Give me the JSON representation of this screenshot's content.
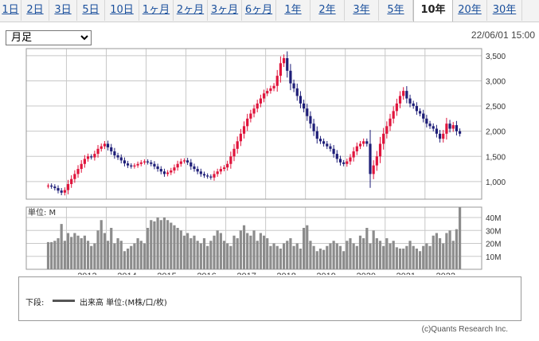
{
  "tabs": [
    {
      "label": "1日",
      "active": false
    },
    {
      "label": "2日",
      "active": false
    },
    {
      "label": "3日",
      "active": false
    },
    {
      "label": "5日",
      "active": false
    },
    {
      "label": "10日",
      "active": false
    },
    {
      "label": "1ヶ月",
      "active": false
    },
    {
      "label": "2ヶ月",
      "active": false
    },
    {
      "label": "3ヶ月",
      "active": false
    },
    {
      "label": "6ヶ月",
      "active": false
    },
    {
      "label": "1年",
      "active": false
    },
    {
      "label": "2年",
      "active": false
    },
    {
      "label": "3年",
      "active": false
    },
    {
      "label": "5年",
      "active": false
    },
    {
      "label": "10年",
      "active": true
    },
    {
      "label": "20年",
      "active": false
    },
    {
      "label": "30年",
      "active": false
    }
  ],
  "period_select": {
    "value": "月足"
  },
  "datetime": "22/06/01 15:00",
  "legend": {
    "prefix": "下段:",
    "text": "出来高 単位:(M株/口/枚)"
  },
  "copyright": "(c)Quants Research Inc.",
  "colors": {
    "up": "#e0143c",
    "down": "#1e1e78",
    "volume": "#8c8c8c",
    "grid": "#c8c8c8",
    "frame": "#9a9a9a"
  },
  "chart_data": {
    "type": "candlestick",
    "x_labels": [
      "2013",
      "2014",
      "2015",
      "2016",
      "2017",
      "2018",
      "2019",
      "2020",
      "2021",
      "2022"
    ],
    "price_axis": {
      "ticks": [
        1000,
        1500,
        2000,
        2500,
        3000,
        3500
      ],
      "tick_labels": [
        "1,000",
        "1,500",
        "2,000",
        "2,500",
        "3,000",
        "3,500"
      ],
      "ylim": [
        650,
        3640
      ]
    },
    "volume_axis": {
      "title": "単位: M",
      "ticks": [
        10,
        20,
        30,
        40
      ],
      "tick_labels": [
        "10M",
        "20M",
        "30M",
        "40M"
      ],
      "ylim": [
        0,
        48
      ]
    },
    "start_month": "2012-07",
    "closes": [
      920,
      900,
      870,
      820,
      780,
      830,
      950,
      1050,
      1150,
      1250,
      1350,
      1450,
      1500,
      1480,
      1550,
      1650,
      1700,
      1750,
      1680,
      1600,
      1520,
      1480,
      1420,
      1360,
      1320,
      1300,
      1320,
      1350,
      1380,
      1400,
      1380,
      1350,
      1300,
      1250,
      1200,
      1150,
      1180,
      1220,
      1280,
      1350,
      1400,
      1420,
      1380,
      1300,
      1250,
      1200,
      1150,
      1120,
      1100,
      1080,
      1150,
      1200,
      1250,
      1280,
      1350,
      1500,
      1650,
      1800,
      1950,
      2100,
      2250,
      2350,
      2450,
      2550,
      2650,
      2750,
      2800,
      2850,
      2900,
      3100,
      3350,
      3450,
      3200,
      2950,
      2850,
      2700,
      2550,
      2450,
      2300,
      2150,
      2000,
      1850,
      1800,
      1750,
      1700,
      1650,
      1550,
      1450,
      1380,
      1350,
      1400,
      1480,
      1600,
      1700,
      1750,
      1800,
      1750,
      1150,
      1320,
      1500,
      1750,
      1950,
      2100,
      2250,
      2400,
      2550,
      2700,
      2800,
      2650,
      2550,
      2500,
      2400,
      2350,
      2250,
      2150,
      2100,
      2050,
      1950,
      1850,
      1950,
      2150,
      2050,
      2120,
      2000,
      1950
    ],
    "volumes": [
      21,
      21,
      22,
      24,
      35,
      22,
      28,
      25,
      28,
      26,
      24,
      26,
      22,
      18,
      20,
      30,
      38,
      28,
      22,
      32,
      20,
      24,
      22,
      14,
      16,
      18,
      20,
      24,
      22,
      20,
      32,
      38,
      37,
      40,
      38,
      40,
      38,
      36,
      34,
      32,
      30,
      26,
      28,
      24,
      26,
      22,
      20,
      24,
      18,
      22,
      26,
      30,
      28,
      22,
      20,
      18,
      26,
      24,
      30,
      34,
      28,
      26,
      30,
      22,
      28,
      26,
      24,
      18,
      20,
      18,
      16,
      20,
      22,
      24,
      18,
      20,
      16,
      32,
      34,
      22,
      18,
      14,
      16,
      15,
      18,
      20,
      22,
      20,
      18,
      14,
      22,
      24,
      20,
      18,
      26,
      24,
      32,
      20,
      30,
      24,
      22,
      18,
      24,
      20,
      22,
      17,
      16,
      16,
      18,
      22,
      18,
      16,
      14,
      18,
      20,
      18,
      26,
      28,
      24,
      20,
      28,
      30,
      22,
      31,
      48
    ]
  }
}
